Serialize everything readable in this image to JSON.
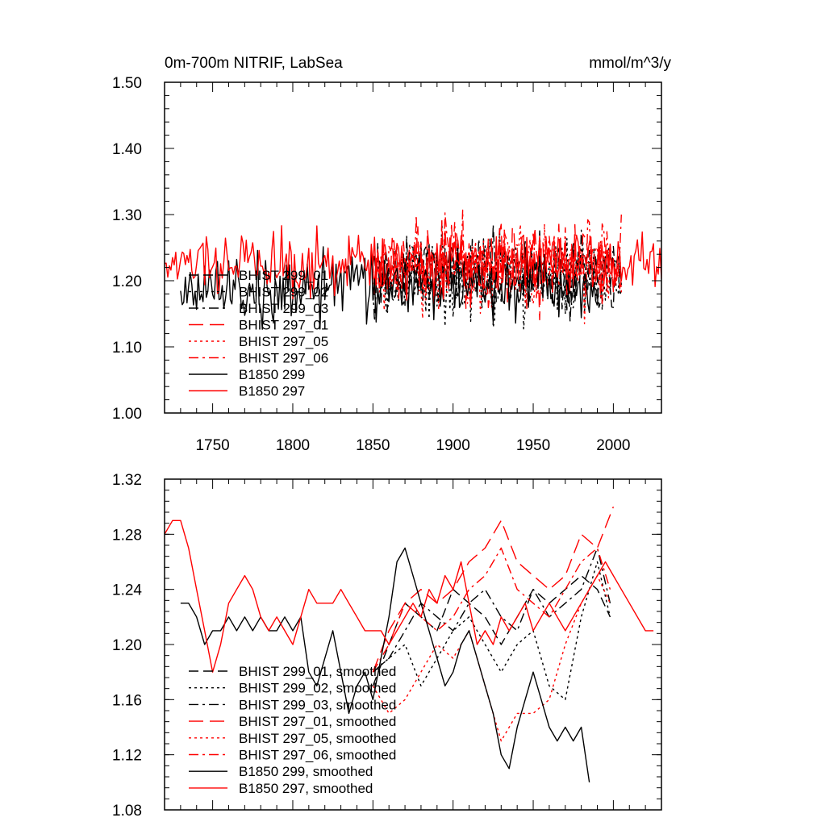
{
  "chart_data": [
    {
      "type": "line",
      "title": "0m-700m NITRIF, LabSea",
      "units": "mmol/m^3/y",
      "xlabel": "",
      "ylabel": "",
      "xlim": [
        1720,
        2030
      ],
      "ylim": [
        1.0,
        1.5
      ],
      "xticks": [
        1750,
        1800,
        1850,
        1900,
        1950,
        2000
      ],
      "xtick_labels": [
        "1750",
        "1800",
        "1850",
        "1900",
        "1950",
        "2000"
      ],
      "yticks": [
        1.0,
        1.1,
        1.2,
        1.3,
        1.4,
        1.5
      ],
      "ytick_labels": [
        "1.00",
        "1.10",
        "1.20",
        "1.30",
        "1.40",
        "1.50"
      ],
      "legend_position": "lower-left",
      "series": [
        {
          "name": "BHIST 299_01",
          "color": "#000000",
          "dash": "dashed",
          "x_start": 1850,
          "x_end": 2005,
          "mean": 1.215,
          "amp": 0.06,
          "seed": 11
        },
        {
          "name": "BHIST 299_02",
          "color": "#000000",
          "dash": "dotted",
          "x_start": 1850,
          "x_end": 2005,
          "mean": 1.205,
          "amp": 0.07,
          "seed": 12
        },
        {
          "name": "BHIST 299_03",
          "color": "#000000",
          "dash": "dashdot",
          "x_start": 1850,
          "x_end": 2005,
          "mean": 1.215,
          "amp": 0.06,
          "seed": 13
        },
        {
          "name": "BHIST 297_01",
          "color": "#ff0000",
          "dash": "longdash",
          "x_start": 1850,
          "x_end": 2005,
          "mean": 1.225,
          "amp": 0.07,
          "seed": 14
        },
        {
          "name": "BHIST 297_05",
          "color": "#ff0000",
          "dash": "dotted",
          "x_start": 1850,
          "x_end": 2005,
          "mean": 1.215,
          "amp": 0.07,
          "seed": 15
        },
        {
          "name": "BHIST 297_06",
          "color": "#ff0000",
          "dash": "dashdot",
          "x_start": 1850,
          "x_end": 2005,
          "mean": 1.225,
          "amp": 0.07,
          "seed": 16
        },
        {
          "name": "B1850 299",
          "color": "#000000",
          "dash": "solid",
          "x_start": 1730,
          "x_end": 1990,
          "mean": 1.19,
          "amp": 0.06,
          "seed": 17
        },
        {
          "name": "B1850 297",
          "color": "#ff0000",
          "dash": "solid",
          "x_start": 1720,
          "x_end": 2030,
          "mean": 1.225,
          "amp": 0.05,
          "seed": 18
        }
      ]
    },
    {
      "type": "line",
      "title": "",
      "xlabel": "",
      "ylabel": "",
      "xlim": [
        1720,
        2030
      ],
      "ylim": [
        1.08,
        1.32
      ],
      "xticks": [
        1750,
        1800,
        1850,
        1900,
        1950,
        2000
      ],
      "yticks": [
        1.08,
        1.12,
        1.16,
        1.2,
        1.24,
        1.28,
        1.32
      ],
      "ytick_labels": [
        "1.08",
        "1.12",
        "1.16",
        "1.20",
        "1.24",
        "1.28",
        "1.32"
      ],
      "legend_position": "lower-left",
      "series": [
        {
          "name": "BHIST 299_01, smoothed",
          "color": "#000000",
          "dash": "dashed",
          "x": [
            1850,
            1860,
            1870,
            1880,
            1890,
            1900,
            1910,
            1920,
            1930,
            1940,
            1950,
            1960,
            1970,
            1980,
            1990,
            1998
          ],
          "y": [
            1.17,
            1.2,
            1.23,
            1.22,
            1.21,
            1.24,
            1.23,
            1.22,
            1.2,
            1.22,
            1.24,
            1.23,
            1.24,
            1.25,
            1.24,
            1.22
          ]
        },
        {
          "name": "BHIST 299_02, smoothed",
          "color": "#000000",
          "dash": "dotted",
          "x": [
            1850,
            1860,
            1870,
            1880,
            1890,
            1900,
            1910,
            1920,
            1930,
            1940,
            1950,
            1960,
            1970,
            1980,
            1990,
            1998
          ],
          "y": [
            1.18,
            1.19,
            1.2,
            1.17,
            1.19,
            1.21,
            1.22,
            1.2,
            1.18,
            1.2,
            1.21,
            1.17,
            1.16,
            1.22,
            1.26,
            1.22
          ]
        },
        {
          "name": "BHIST 299_03, smoothed",
          "color": "#000000",
          "dash": "dashdot",
          "x": [
            1850,
            1860,
            1870,
            1880,
            1890,
            1900,
            1910,
            1920,
            1930,
            1940,
            1950,
            1960,
            1970,
            1980,
            1990,
            1998
          ],
          "y": [
            1.18,
            1.19,
            1.21,
            1.23,
            1.22,
            1.21,
            1.23,
            1.24,
            1.22,
            1.21,
            1.24,
            1.22,
            1.23,
            1.24,
            1.27,
            1.23
          ]
        },
        {
          "name": "BHIST 297_01, smoothed",
          "color": "#ff0000",
          "dash": "longdash",
          "x": [
            1850,
            1860,
            1870,
            1880,
            1890,
            1900,
            1910,
            1920,
            1930,
            1940,
            1950,
            1960,
            1970,
            1980,
            1990,
            2000
          ],
          "y": [
            1.18,
            1.21,
            1.23,
            1.24,
            1.23,
            1.24,
            1.26,
            1.27,
            1.29,
            1.26,
            1.25,
            1.24,
            1.25,
            1.28,
            1.27,
            1.3
          ]
        },
        {
          "name": "BHIST 297_05, smoothed",
          "color": "#ff0000",
          "dash": "dotted",
          "x": [
            1850,
            1860,
            1870,
            1880,
            1890,
            1900,
            1910,
            1920,
            1930,
            1940,
            1950,
            1960,
            1970,
            1980,
            1990,
            1998
          ],
          "y": [
            1.17,
            1.15,
            1.16,
            1.18,
            1.2,
            1.19,
            1.21,
            1.17,
            1.13,
            1.15,
            1.15,
            1.16,
            1.2,
            1.23,
            1.25,
            1.23
          ]
        },
        {
          "name": "BHIST 297_06, smoothed",
          "color": "#ff0000",
          "dash": "dashdot",
          "x": [
            1850,
            1860,
            1870,
            1880,
            1890,
            1900,
            1910,
            1920,
            1930,
            1940,
            1950,
            1960,
            1970,
            1980,
            1990,
            1998
          ],
          "y": [
            1.18,
            1.2,
            1.23,
            1.22,
            1.21,
            1.22,
            1.24,
            1.25,
            1.27,
            1.24,
            1.23,
            1.22,
            1.24,
            1.26,
            1.27,
            1.24
          ]
        },
        {
          "name": "B1850 299, smoothed",
          "color": "#000000",
          "dash": "solid",
          "x": [
            1730,
            1735,
            1740,
            1745,
            1750,
            1755,
            1760,
            1765,
            1770,
            1775,
            1780,
            1785,
            1790,
            1795,
            1800,
            1805,
            1810,
            1815,
            1820,
            1825,
            1830,
            1835,
            1840,
            1845,
            1850,
            1855,
            1860,
            1865,
            1870,
            1875,
            1880,
            1885,
            1890,
            1895,
            1900,
            1905,
            1910,
            1915,
            1920,
            1925,
            1930,
            1935,
            1940,
            1945,
            1950,
            1955,
            1960,
            1965,
            1970,
            1975,
            1980,
            1985
          ],
          "y": [
            1.23,
            1.23,
            1.22,
            1.2,
            1.21,
            1.21,
            1.22,
            1.21,
            1.22,
            1.21,
            1.22,
            1.21,
            1.21,
            1.22,
            1.21,
            1.22,
            1.18,
            1.17,
            1.19,
            1.21,
            1.18,
            1.15,
            1.17,
            1.18,
            1.16,
            1.19,
            1.22,
            1.26,
            1.27,
            1.25,
            1.23,
            1.21,
            1.19,
            1.17,
            1.18,
            1.2,
            1.21,
            1.19,
            1.17,
            1.15,
            1.12,
            1.11,
            1.14,
            1.16,
            1.18,
            1.16,
            1.14,
            1.13,
            1.14,
            1.13,
            1.14,
            1.1
          ]
        },
        {
          "name": "B1850 297, smoothed",
          "color": "#ff0000",
          "dash": "solid",
          "x": [
            1720,
            1725,
            1730,
            1735,
            1740,
            1745,
            1750,
            1755,
            1760,
            1765,
            1770,
            1775,
            1780,
            1785,
            1790,
            1795,
            1800,
            1805,
            1810,
            1815,
            1820,
            1825,
            1830,
            1835,
            1840,
            1845,
            1850,
            1855,
            1860,
            1865,
            1870,
            1875,
            1880,
            1885,
            1890,
            1895,
            1900,
            1905,
            1910,
            1915,
            1920,
            1925,
            1930,
            1935,
            1940,
            1945,
            1950,
            1955,
            1960,
            1965,
            1970,
            1975,
            1980,
            1985,
            1990,
            1995,
            2000,
            2005,
            2010,
            2015,
            2020,
            2025
          ],
          "y": [
            1.28,
            1.29,
            1.29,
            1.27,
            1.24,
            1.21,
            1.18,
            1.2,
            1.23,
            1.24,
            1.25,
            1.24,
            1.22,
            1.21,
            1.22,
            1.21,
            1.2,
            1.22,
            1.24,
            1.23,
            1.23,
            1.23,
            1.24,
            1.23,
            1.22,
            1.21,
            1.21,
            1.21,
            1.2,
            1.21,
            1.22,
            1.23,
            1.22,
            1.24,
            1.23,
            1.25,
            1.24,
            1.26,
            1.23,
            1.2,
            1.21,
            1.2,
            1.22,
            1.21,
            1.22,
            1.23,
            1.21,
            1.22,
            1.23,
            1.22,
            1.21,
            1.22,
            1.23,
            1.24,
            1.25,
            1.26,
            1.25,
            1.24,
            1.23,
            1.22,
            1.21,
            1.21
          ]
        }
      ]
    }
  ]
}
